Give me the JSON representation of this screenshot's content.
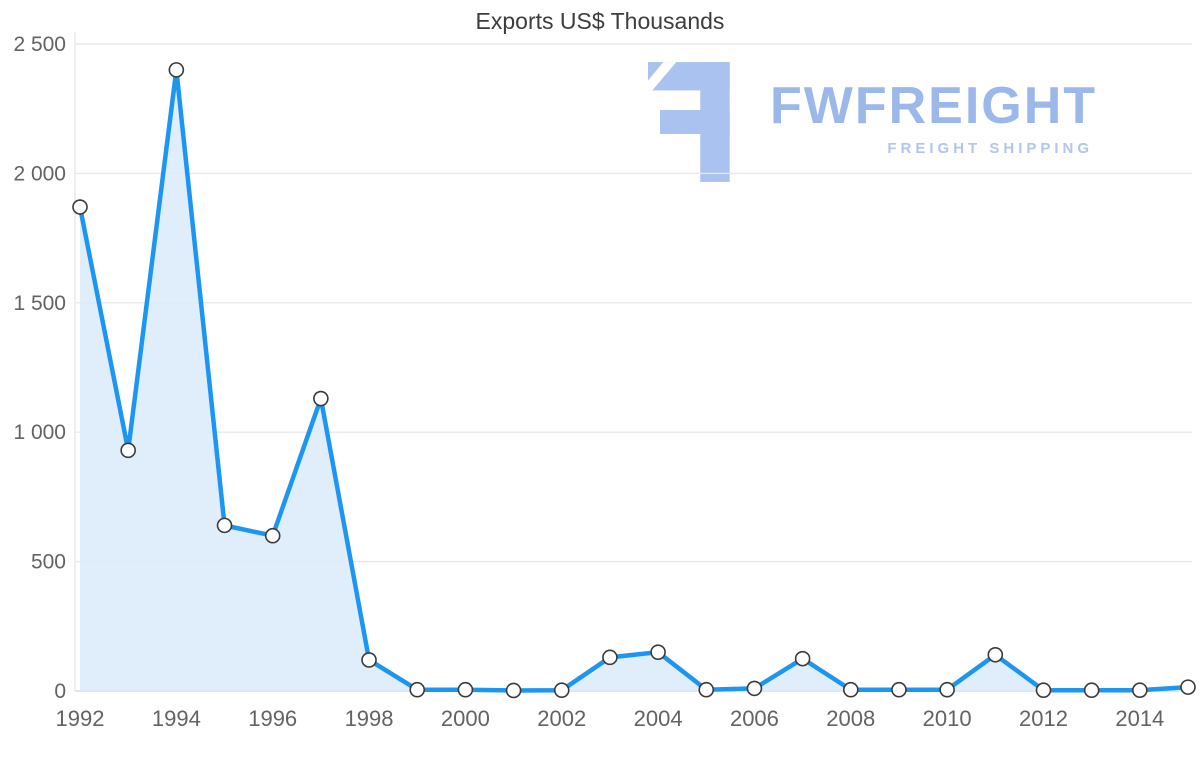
{
  "chart": {
    "title": "Exports US$ Thousands"
  },
  "chart_data": {
    "type": "area",
    "title": "Exports US$ Thousands",
    "xlabel": "",
    "ylabel": "",
    "x": [
      1992,
      1993,
      1994,
      1995,
      1996,
      1997,
      1998,
      1999,
      2000,
      2001,
      2002,
      2003,
      2004,
      2005,
      2006,
      2007,
      2008,
      2009,
      2010,
      2011,
      2012,
      2013,
      2014,
      2015
    ],
    "values": [
      1870,
      930,
      2400,
      640,
      600,
      1130,
      120,
      5,
      5,
      2,
      3,
      130,
      150,
      5,
      10,
      125,
      5,
      5,
      5,
      140,
      3,
      3,
      3,
      15
    ],
    "ylim": [
      0,
      2500
    ],
    "yticks": [
      0,
      500,
      1000,
      1500,
      2000,
      2500
    ],
    "ytick_labels": [
      "0",
      "500",
      "1 000",
      "1 500",
      "2 000",
      "2 500"
    ],
    "xtick_years": [
      1992,
      1994,
      1996,
      1998,
      2000,
      2002,
      2004,
      2006,
      2008,
      2010,
      2012,
      2014
    ],
    "grid": true,
    "legend": "none",
    "line_color": "#1d96f2",
    "area_color": "#daebfb",
    "marker_fill": "#ffffff",
    "marker_stroke": "#3a3a3a",
    "grid_color": "#e8e8e8",
    "zero_line_color": "#d6dde2",
    "axis_label_color": "#636363"
  },
  "watermark": {
    "name": "FWFREIGHT",
    "tagline": "FREIGHT SHIPPING",
    "brand_color": "#9cb7ea",
    "tagline_color": "#b3c5ee",
    "icon_color": "#a9c2ef",
    "icon": "flipped-f-freight-mark"
  }
}
